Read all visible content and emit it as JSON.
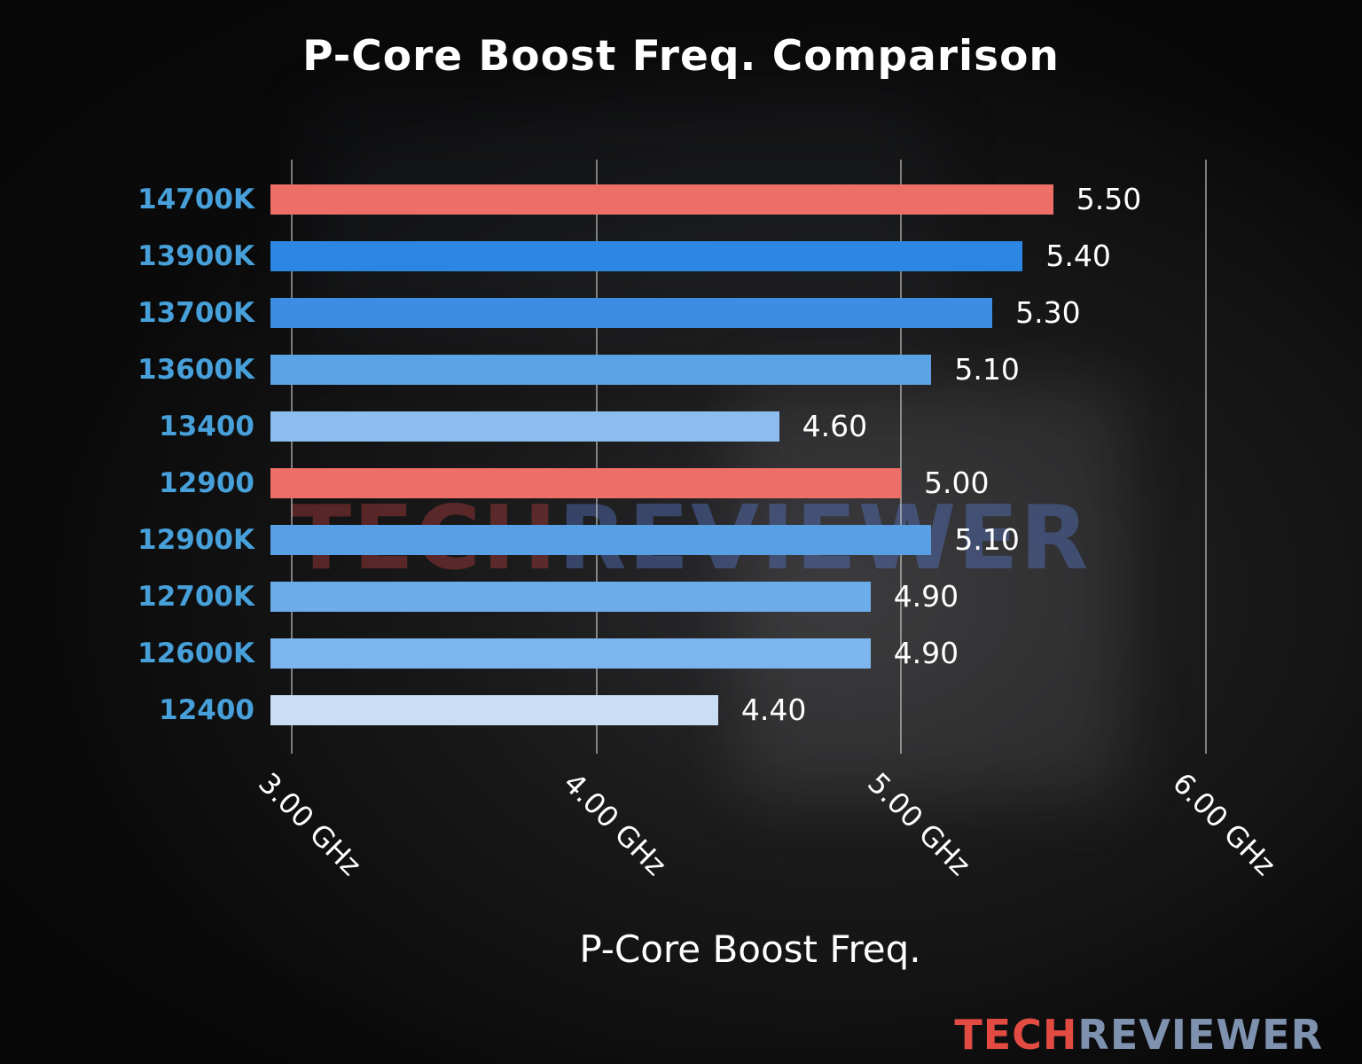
{
  "title": "P-Core Boost Freq. Comparison",
  "watermark": {
    "left": "TECH",
    "right": "REVIEWER"
  },
  "logo": {
    "left": "TECH",
    "right": "REVIEWER"
  },
  "colors": {
    "title": "#ffffff",
    "value_label": "#ffffff",
    "tick_label": "#ffffff",
    "category_label": "#47a0d9",
    "grid": "rgba(215,215,215,0.55)",
    "accent_red": "#ee6f68",
    "logo_left": "#e14b42",
    "logo_right": "#7e92b0",
    "watermark_left": "rgba(155,55,55,0.50)",
    "watermark_right": "rgba(85,115,190,0.45)"
  },
  "chart_data": {
    "type": "bar",
    "orientation": "horizontal",
    "title": "P-Core Boost Freq. Comparison",
    "xlabel": "P-Core Boost Freq.",
    "categories": [
      "14700K",
      "13900K",
      "13700K",
      "13600K",
      "13400",
      "12900",
      "12900K",
      "12700K",
      "12600K",
      "12400"
    ],
    "values": [
      5.5,
      5.4,
      5.3,
      5.1,
      4.6,
      5.0,
      5.1,
      4.9,
      4.9,
      4.4
    ],
    "bar_colors": [
      "#ee6f68",
      "#2c87e4",
      "#3d8de2",
      "#5ca3e6",
      "#8cbdee",
      "#ee6f68",
      "#599fe4",
      "#6caceb",
      "#7db5ee",
      "#c9ddf5"
    ],
    "xticks": [
      3.0,
      4.0,
      5.0,
      6.0
    ],
    "xtick_labels": [
      "3.00 GHz",
      "4.00 GHz",
      "5.00 GHz",
      "6.00 GHz"
    ],
    "xlim": [
      2.93,
      6.08
    ],
    "grid": true,
    "legend": null,
    "unit": "GHz"
  }
}
